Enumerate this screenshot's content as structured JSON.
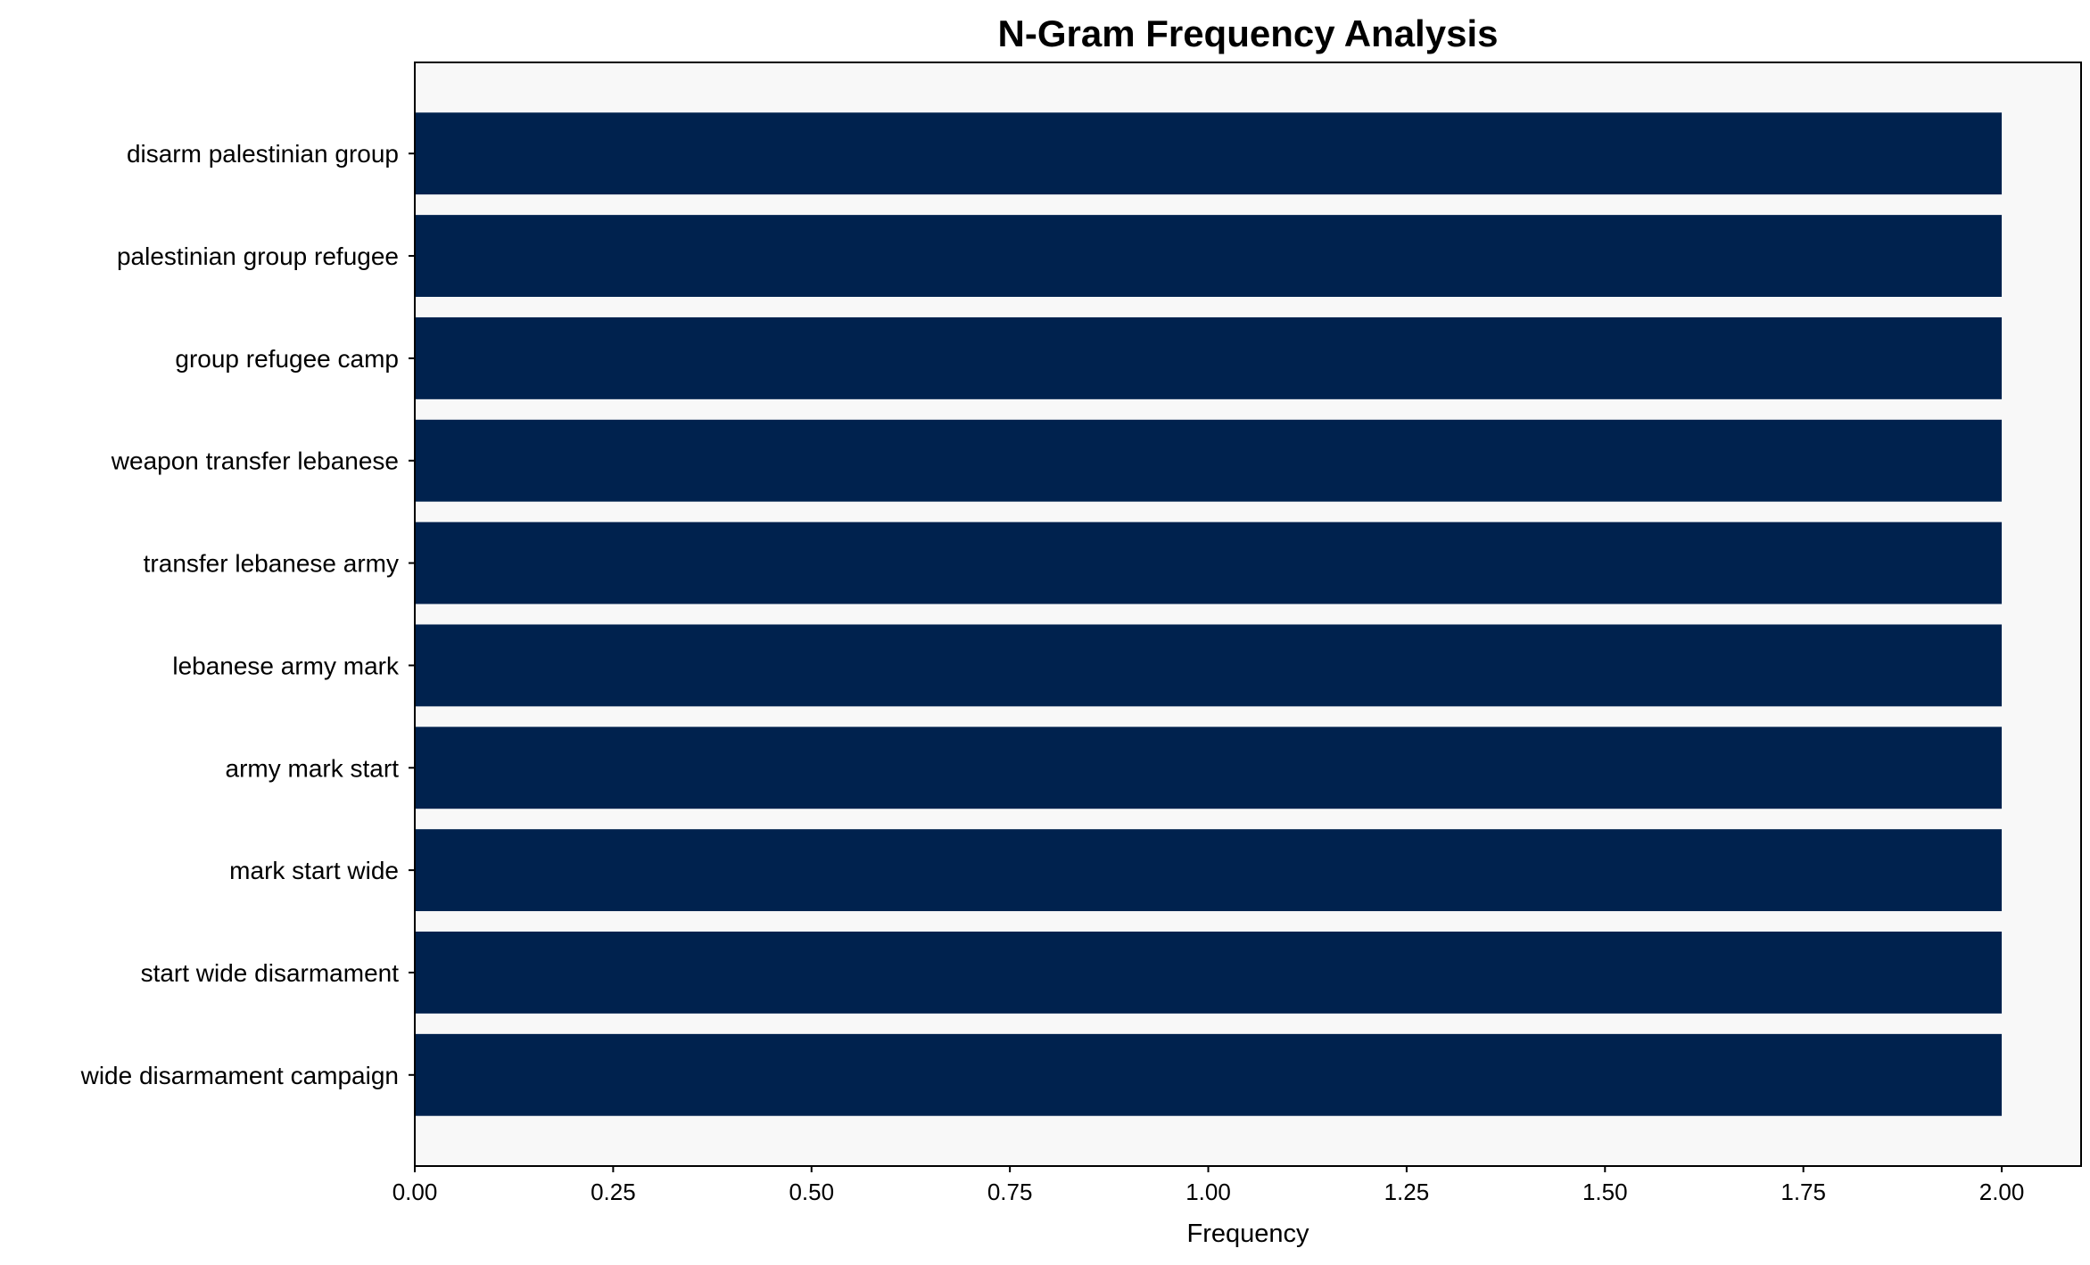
{
  "chart_data": {
    "type": "bar",
    "orientation": "horizontal",
    "title": "N-Gram Frequency Analysis",
    "xlabel": "Frequency",
    "ylabel": "",
    "categories": [
      "disarm palestinian group",
      "palestinian group refugee",
      "group refugee camp",
      "weapon transfer lebanese",
      "transfer lebanese army",
      "lebanese army mark",
      "army mark start",
      "mark start wide",
      "start wide disarmament",
      "wide disarmament campaign"
    ],
    "values": [
      2,
      2,
      2,
      2,
      2,
      2,
      2,
      2,
      2,
      2
    ],
    "xlim": [
      0,
      2.1
    ],
    "xticks": [
      "0.00",
      "0.25",
      "0.50",
      "0.75",
      "1.00",
      "1.25",
      "1.50",
      "1.75",
      "2.00"
    ],
    "grid": false,
    "bar_color": "#00224E",
    "plot_background": "#F8F8F8"
  }
}
